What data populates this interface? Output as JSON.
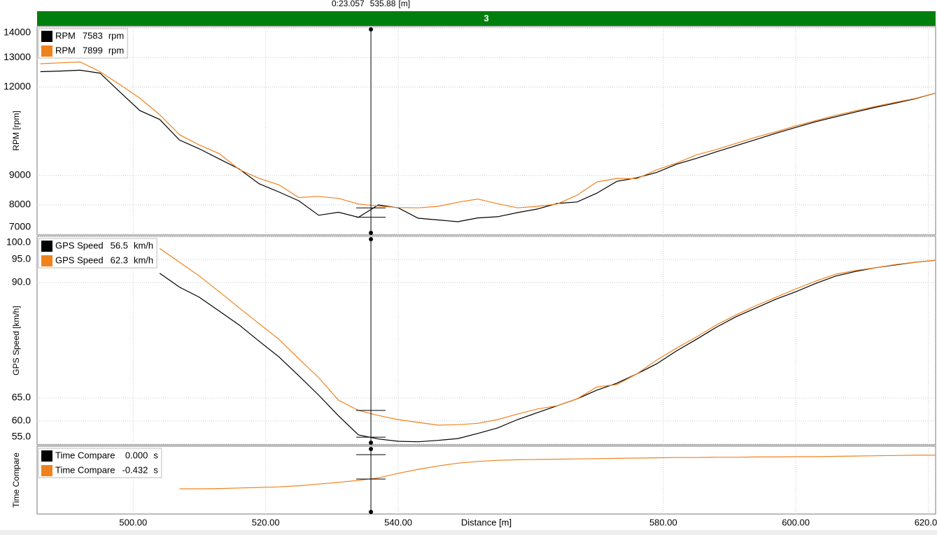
{
  "header": {
    "cursor_time": "0:23.057",
    "cursor_distance": 535.88,
    "cursor_unit": "[m]",
    "lap": "3"
  },
  "chart_data": [
    {
      "type": "line",
      "ylabel": "RPM [rpm]",
      "unit": "rpm",
      "grid": true,
      "xlim": [
        485.5,
        621.1
      ],
      "ylim": [
        6980,
        14050
      ],
      "yticks": [
        7000,
        8000,
        9000,
        12000,
        13000,
        14000
      ],
      "x": [
        486,
        489,
        492,
        495,
        498,
        501,
        504,
        507,
        510,
        513,
        516,
        519,
        522,
        525,
        528,
        531,
        534,
        537,
        540,
        543,
        546,
        549,
        552,
        555,
        558,
        561,
        564,
        567,
        570,
        573,
        576,
        579,
        582,
        585,
        588,
        591,
        594,
        597,
        600,
        603,
        606,
        609,
        612,
        615,
        618,
        621
      ],
      "series": [
        {
          "name": "RPM",
          "color": "#000000",
          "readout": 7583,
          "values": [
            12520,
            12540,
            12570,
            12470,
            11830,
            11200,
            10900,
            10200,
            9900,
            9560,
            9220,
            8720,
            8440,
            8140,
            7650,
            7750,
            7580,
            8000,
            7900,
            7550,
            7490,
            7430,
            7560,
            7600,
            7740,
            7860,
            8050,
            8100,
            8400,
            8800,
            8920,
            9100,
            9380,
            9580,
            9800,
            10010,
            10220,
            10430,
            10630,
            10820,
            10990,
            11150,
            11310,
            11450,
            11600,
            11790
          ]
        },
        {
          "name": "RPM",
          "color": "#f0821e",
          "readout": 7899,
          "values": [
            12790,
            12820,
            12850,
            12520,
            12080,
            11620,
            11060,
            10380,
            10030,
            9740,
            9200,
            8900,
            8680,
            8250,
            8290,
            8220,
            8030,
            7960,
            7910,
            7900,
            7950,
            8090,
            8200,
            8040,
            7900,
            7950,
            8030,
            8330,
            8780,
            8900,
            8890,
            9190,
            9420,
            9700,
            9880,
            10090,
            10300,
            10480,
            10680,
            10860,
            11040,
            11190,
            11340,
            11480,
            11610,
            11790
          ]
        }
      ]
    },
    {
      "type": "line",
      "ylabel": "GPS Speed [km/h]",
      "unit": "km/h",
      "grid": true,
      "xlim": [
        485.5,
        621.1
      ],
      "ylim": [
        54.85,
        100
      ],
      "yticks": [
        {
          "value": 55,
          "label": "55.0"
        },
        {
          "value": 60,
          "label": "60.0"
        },
        {
          "value": 65,
          "label": "65.0"
        },
        {
          "value": 90,
          "label": "90.0"
        },
        {
          "value": 95,
          "label": "95.0"
        },
        {
          "value": 100,
          "label": "100.0"
        }
      ],
      "x": [
        486,
        489,
        492,
        495,
        498,
        501,
        504,
        507,
        510,
        513,
        516,
        519,
        522,
        525,
        528,
        531,
        534,
        537,
        540,
        543,
        546,
        549,
        552,
        555,
        558,
        561,
        564,
        567,
        570,
        573,
        576,
        579,
        582,
        585,
        588,
        591,
        594,
        597,
        600,
        603,
        606,
        609,
        612,
        615,
        618,
        621
      ],
      "series": [
        {
          "name": "GPS Speed",
          "color": "#000000",
          "readout": 56.5,
          "values": [
            null,
            null,
            null,
            null,
            null,
            null,
            92.0,
            89.0,
            86.8,
            83.8,
            80.8,
            77.3,
            73.9,
            69.8,
            65.6,
            61.1,
            57.0,
            56.1,
            55.6,
            55.5,
            55.8,
            56.2,
            57.3,
            58.5,
            60.3,
            61.8,
            63.3,
            64.8,
            66.7,
            68.2,
            70.2,
            72.4,
            75.2,
            77.7,
            80.3,
            82.6,
            84.5,
            86.4,
            88.0,
            89.8,
            91.4,
            92.4,
            93.2,
            93.8,
            94.4,
            94.8
          ]
        },
        {
          "name": "GPS Speed",
          "color": "#f0821e",
          "readout": 62.3,
          "values": [
            null,
            null,
            null,
            null,
            null,
            null,
            97.4,
            94.4,
            91.4,
            88.0,
            84.5,
            81.1,
            77.7,
            73.5,
            69.4,
            64.5,
            62.3,
            61.2,
            60.3,
            59.7,
            59.1,
            59.2,
            59.5,
            60.3,
            61.5,
            62.6,
            63.3,
            64.8,
            67.4,
            67.9,
            70.2,
            73.2,
            75.8,
            78.2,
            80.8,
            83.0,
            85.0,
            86.8,
            88.6,
            90.3,
            91.8,
            92.6,
            93.2,
            93.9,
            94.4,
            94.8
          ]
        }
      ]
    },
    {
      "type": "line",
      "ylabel": "Time Compare",
      "unit": "s",
      "grid": true,
      "xlim": [
        485.5,
        621.1
      ],
      "ylim": [
        -1.05,
        0.15
      ],
      "xlabel": "Distance [m]",
      "xticks": [
        {
          "value": 500,
          "label": "500.00"
        },
        {
          "value": 520,
          "label": "520.00"
        },
        {
          "value": 540,
          "label": "540.00"
        },
        {
          "value": 580,
          "label": "580.00"
        },
        {
          "value": 600,
          "label": "600.00"
        },
        {
          "value": 620,
          "label": "620.00"
        }
      ],
      "x": [
        486,
        489,
        492,
        495,
        498,
        501,
        504,
        507,
        510,
        513,
        516,
        519,
        522,
        525,
        528,
        531,
        534,
        537,
        540,
        543,
        546,
        549,
        552,
        555,
        558,
        561,
        564,
        567,
        570,
        573,
        576,
        579,
        582,
        585,
        588,
        591,
        594,
        597,
        600,
        603,
        606,
        609,
        612,
        615,
        618,
        621
      ],
      "series": [
        {
          "name": "Time Compare",
          "color": "#000000",
          "readout": {
            "value": 0,
            "label": "0.000"
          }
        },
        {
          "name": "Time Compare",
          "color": "#f0821e",
          "readout": -0.432,
          "values": [
            null,
            null,
            null,
            null,
            null,
            null,
            null,
            -0.605,
            -0.605,
            -0.6,
            -0.59,
            -0.58,
            -0.57,
            -0.55,
            -0.52,
            -0.49,
            -0.455,
            -0.41,
            -0.33,
            -0.26,
            -0.2,
            -0.15,
            -0.12,
            -0.1,
            -0.09,
            -0.085,
            -0.08,
            -0.075,
            -0.07,
            -0.065,
            -0.06,
            -0.055,
            -0.05,
            -0.05,
            -0.045,
            -0.045,
            -0.04,
            -0.04,
            -0.035,
            -0.035,
            -0.03,
            -0.025,
            -0.02,
            -0.015,
            -0.01,
            -0.01
          ]
        }
      ]
    }
  ]
}
